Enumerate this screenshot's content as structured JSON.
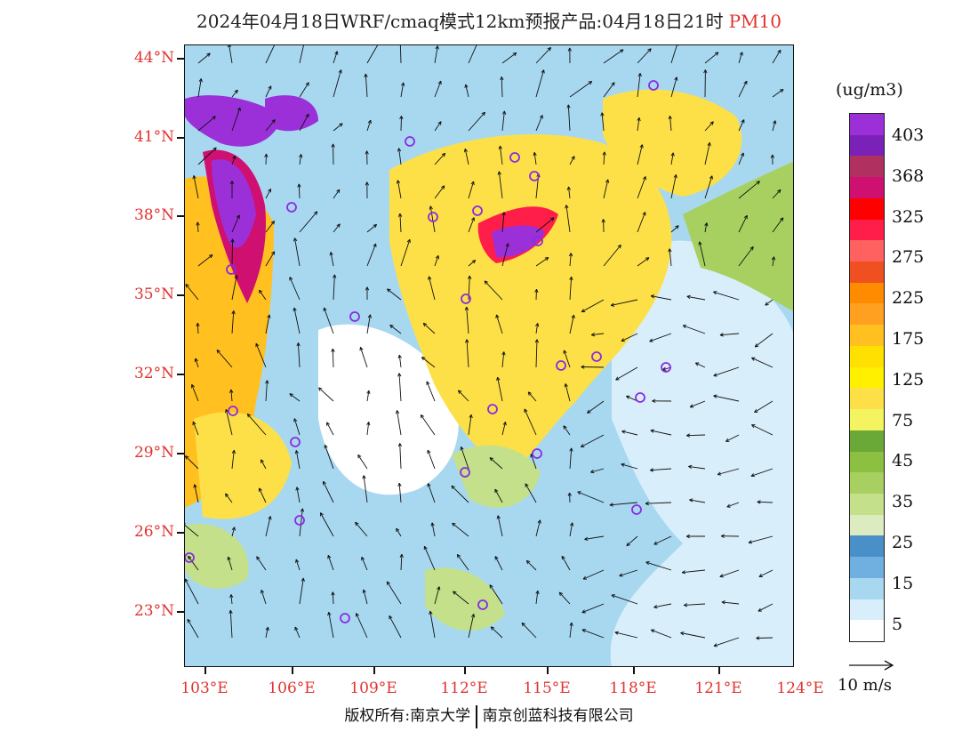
{
  "title": {
    "text": "2024年04月18日WRF/cmaq模式12km预报产品:04月18日21时",
    "species": "PM10",
    "species_color": "#e0332f"
  },
  "map": {
    "lat_labels": [
      "44°N",
      "41°N",
      "38°N",
      "35°N",
      "32°N",
      "29°N",
      "26°N",
      "23°N"
    ],
    "lon_labels": [
      "103°E",
      "106°E",
      "109°E",
      "112°E",
      "115°E",
      "118°E",
      "121°E",
      "124°E"
    ],
    "label_color": "#e0332f",
    "station_marker_color": "#8a2be2"
  },
  "legend": {
    "unit": "(ug/m3)",
    "bins": [
      {
        "color": "#9b30d8"
      },
      {
        "color": "#7a22b8"
      },
      {
        "color": "#b03060"
      },
      {
        "color": "#d01070"
      },
      {
        "color": "#ff0000"
      },
      {
        "color": "#ff1d4a"
      },
      {
        "color": "#ff6060"
      },
      {
        "color": "#f05020"
      },
      {
        "color": "#ff8c00"
      },
      {
        "color": "#ffa020"
      },
      {
        "color": "#ffc020"
      },
      {
        "color": "#ffe000"
      },
      {
        "color": "#fff000"
      },
      {
        "color": "#fde047"
      },
      {
        "color": "#f4f460"
      },
      {
        "color": "#6aa838"
      },
      {
        "color": "#8cc040"
      },
      {
        "color": "#a8d060"
      },
      {
        "color": "#c4e08a"
      },
      {
        "color": "#dcecc0"
      },
      {
        "color": "#4a90c8"
      },
      {
        "color": "#70b0e0"
      },
      {
        "color": "#a8d8f0"
      },
      {
        "color": "#d8eefa"
      },
      {
        "color": "#ffffff"
      }
    ],
    "labels": [
      "403",
      "368",
      "325",
      "275",
      "225",
      "175",
      "125",
      "75",
      "45",
      "35",
      "25",
      "15",
      "5"
    ]
  },
  "wind_reference": {
    "label": "10 m/s"
  },
  "footer": {
    "left": "版权所有:南京大学",
    "right": "南京创蓝科技有限公司"
  }
}
